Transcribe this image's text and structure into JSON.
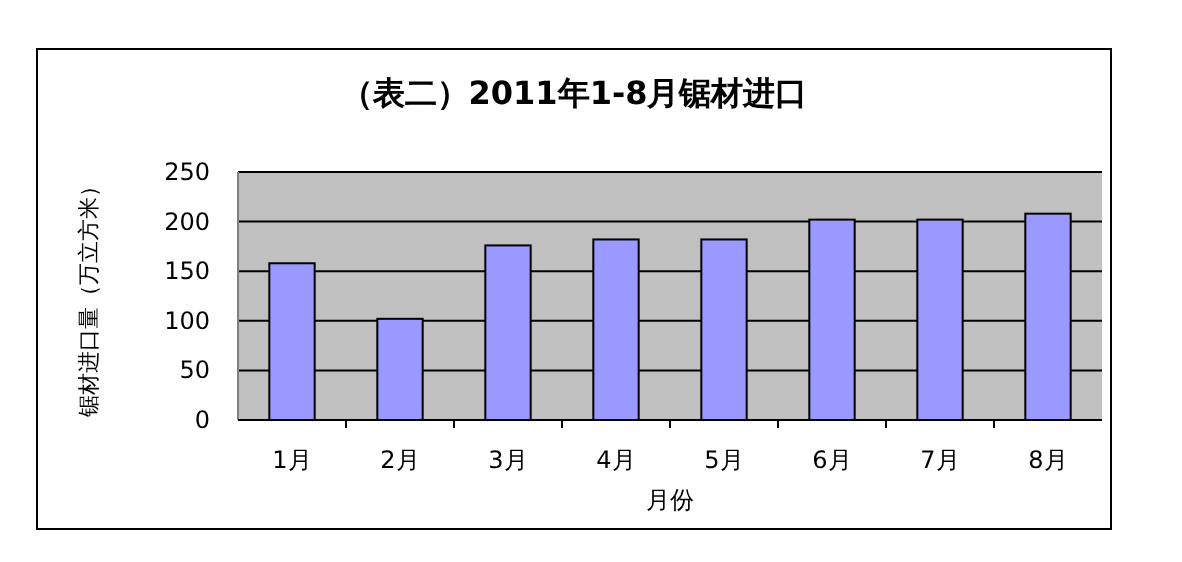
{
  "chart_data": {
    "type": "bar",
    "title": "（表二）2011年1-8月锯材进口",
    "xlabel": "月份",
    "ylabel": "锯材进口量（万立方米）",
    "categories": [
      "1月",
      "2月",
      "3月",
      "4月",
      "5月",
      "6月",
      "7月",
      "8月"
    ],
    "values": [
      158,
      102,
      176,
      182,
      182,
      202,
      202,
      208
    ],
    "color": "#9999ff",
    "ylim": [
      0,
      250
    ],
    "yticks": [
      0,
      50,
      100,
      150,
      200,
      250
    ],
    "grid": "y"
  }
}
